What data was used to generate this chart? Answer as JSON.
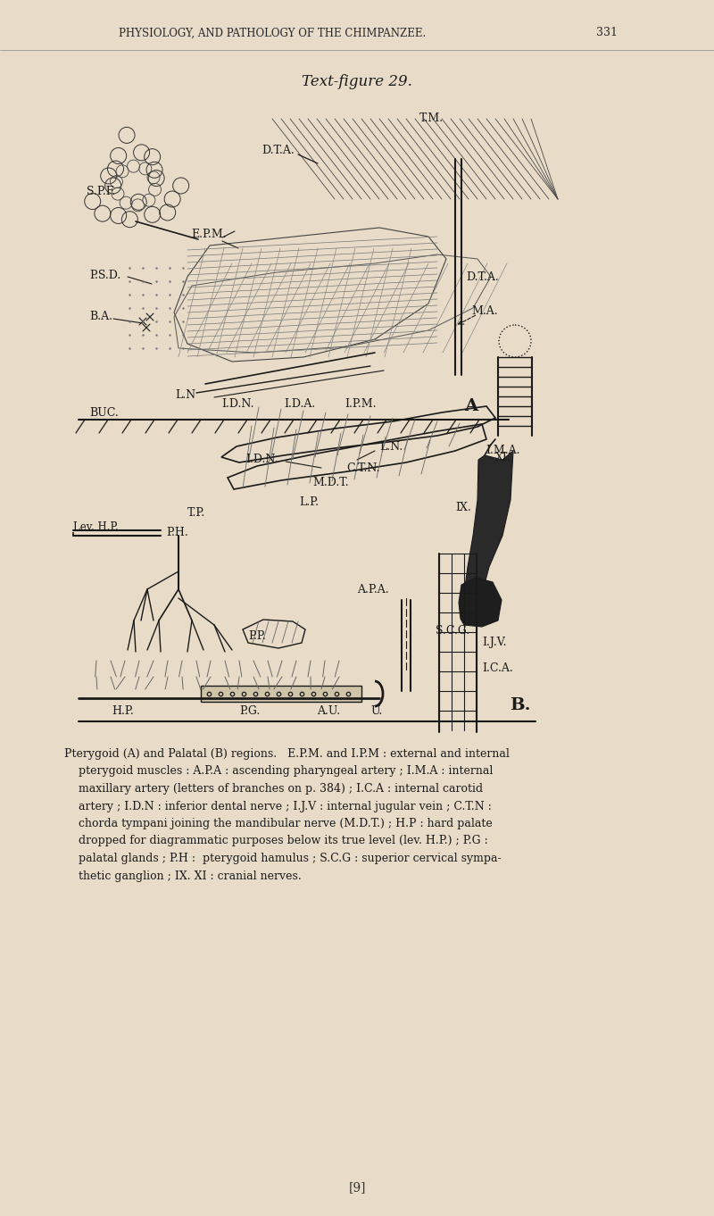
{
  "bg_color": "#e8dcc8",
  "header_text": "PHYSIOLOGY, AND PATHOLOGY OF THE CHIMPANZEE.",
  "page_num": "331",
  "figure_title": "Text-figure 29.",
  "ink_color": "#1a1a1a",
  "caption_lines": [
    "Pterygoid (A) and Palatal (B) regions.   E.P.M. and I.P.M : external and internal",
    "    pterygoid muscles : A.P.A : ascending pharyngeal artery ; I.M.A : internal",
    "    maxillary artery (letters of branches on p. 384) ; I.C.A : internal carotid",
    "    artery ; I.D.N : inferior dental nerve ; I.J.V : internal jugular vein ; C.T.N :",
    "    chorda tympani joining the mandibular nerve (M.D.T.) ; H.P : hard palate",
    "    dropped for diagrammatic purposes below its true level (lev. H.P.) ; P.G :",
    "    palatal glands ; P.H :  pterygoid hamulus ; S.C.G : superior cervical sympa-",
    "    thetic ganglion ; IX. XI : cranial nerves."
  ],
  "footer": "[9]"
}
